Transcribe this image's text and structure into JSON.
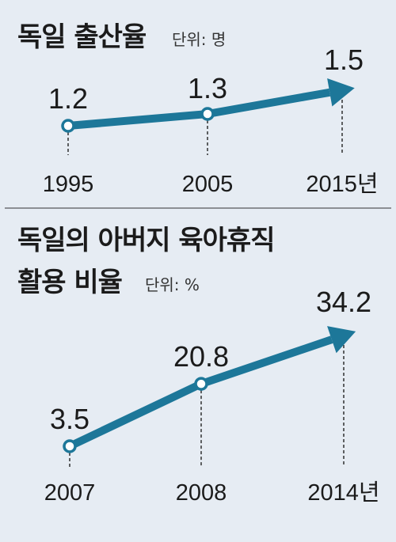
{
  "chart_data": [
    {
      "type": "line",
      "title": "독일 출산율",
      "unit": "단위: 명",
      "categories": [
        "1995",
        "2005",
        "2015년"
      ],
      "values": [
        1.2,
        1.3,
        1.5
      ],
      "value_labels": [
        "1.2",
        "1.3",
        "1.5"
      ],
      "line_color": "#1d7799"
    },
    {
      "type": "line",
      "title_line1": "독일의 아버지 육아휴직",
      "title_line2": "활용 비율",
      "unit": "단위: %",
      "categories": [
        "2007",
        "2008",
        "2014년"
      ],
      "values": [
        3.5,
        20.8,
        34.2
      ],
      "value_labels": [
        "3.5",
        "20.8",
        "34.2"
      ],
      "line_color": "#1d7799"
    }
  ]
}
